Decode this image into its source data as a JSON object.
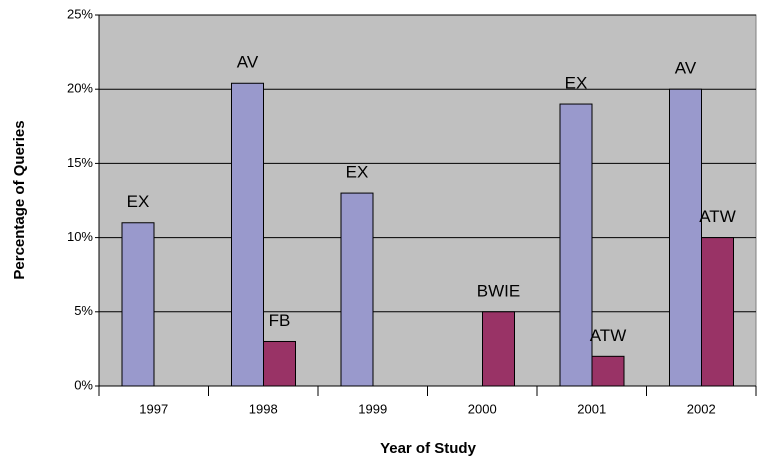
{
  "chart_data": {
    "type": "bar",
    "x_label": "Year of Study",
    "y_label": "Percentage of Queries",
    "categories": [
      "1997",
      "1998",
      "1999",
      "2000",
      "2001",
      "2002"
    ],
    "series": [
      {
        "color": "#9999cc",
        "values": [
          11,
          20.4,
          13,
          null,
          19,
          20
        ],
        "labels": [
          "EX",
          "AV",
          "EX",
          null,
          "EX",
          "AV"
        ]
      },
      {
        "color": "#993366",
        "values": [
          null,
          3,
          null,
          5,
          2,
          10
        ],
        "labels": [
          null,
          "FB",
          null,
          "BWIE",
          "ATW",
          "ATW"
        ]
      }
    ],
    "ylim": [
      0,
      25
    ],
    "yticks": [
      {
        "value": 0,
        "label": "0%"
      },
      {
        "value": 5,
        "label": "5%"
      },
      {
        "value": 10,
        "label": "10%"
      },
      {
        "value": 15,
        "label": "15%"
      },
      {
        "value": 20,
        "label": "20%"
      },
      {
        "value": 25,
        "label": "25%"
      }
    ],
    "grid": true,
    "plot_background": "#c0c0c0"
  }
}
